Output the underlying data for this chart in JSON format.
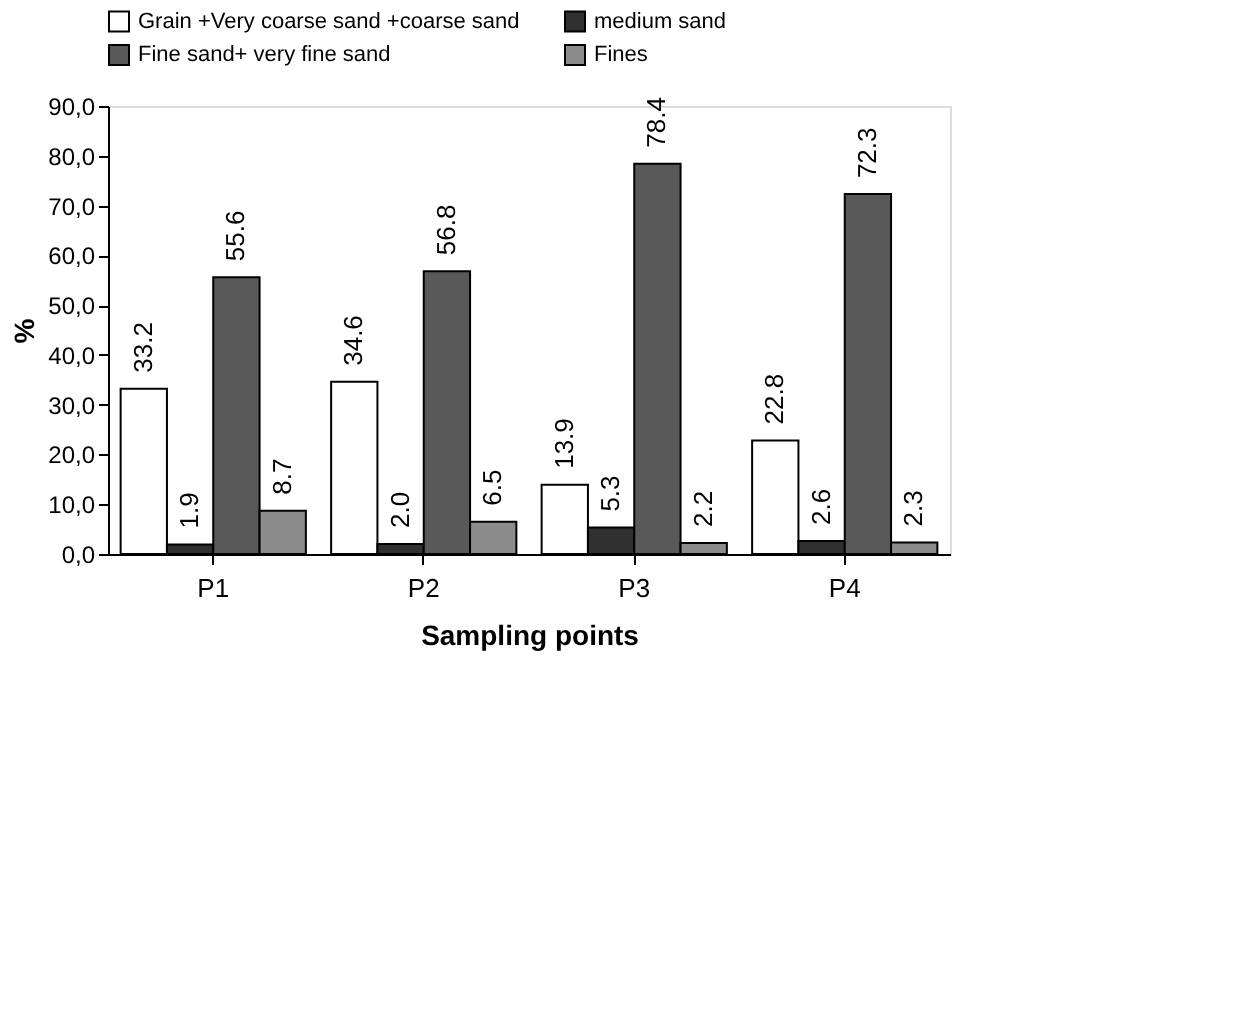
{
  "chart_data": {
    "type": "bar",
    "xlabel": "Sampling points",
    "ylabel": "%",
    "categories": [
      "P1",
      "P2",
      "P3",
      "P4"
    ],
    "series": [
      {
        "name": "Grain +Very coarse sand +coarse sand",
        "color": "#ffffff",
        "values": [
          33.2,
          34.6,
          13.9,
          22.8
        ],
        "value_labels": [
          "33.2",
          "34.6",
          "13.9",
          "22.8"
        ]
      },
      {
        "name": "medium  sand",
        "color": "#303030",
        "values": [
          1.9,
          2.0,
          5.3,
          2.6
        ],
        "value_labels": [
          "1.9",
          "2.0",
          "5.3",
          "2.6"
        ]
      },
      {
        "name": "Fine sand+  very fine sand",
        "color": "#595959",
        "values": [
          55.6,
          56.8,
          78.4,
          72.3
        ],
        "value_labels": [
          "55.6",
          "56.8",
          "78.4",
          "72.3"
        ]
      },
      {
        "name": "Fines",
        "color": "#8c8c8c",
        "values": [
          8.7,
          6.5,
          2.2,
          2.3
        ],
        "value_labels": [
          "8.7",
          "6.5",
          "2.2",
          "2.3"
        ]
      }
    ],
    "ylim": [
      0,
      90
    ],
    "yticks": [
      {
        "value": 0,
        "label": "0,0"
      },
      {
        "value": 10,
        "label": "10,0"
      },
      {
        "value": 20,
        "label": "20,0"
      },
      {
        "value": 30,
        "label": "30,0"
      },
      {
        "value": 40,
        "label": "40,0"
      },
      {
        "value": 50,
        "label": "50,0"
      },
      {
        "value": 60,
        "label": "60,0"
      },
      {
        "value": 70,
        "label": "70,0"
      },
      {
        "value": 80,
        "label": "80,0"
      },
      {
        "value": 90,
        "label": "90,0"
      }
    ],
    "grid": false,
    "legend": "top"
  }
}
